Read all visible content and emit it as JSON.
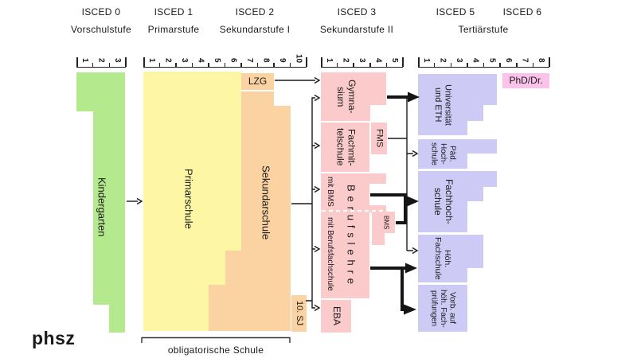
{
  "colors": {
    "green": "#b5e98e",
    "yellow": "#fdf6a4",
    "orange": "#fbd2a2",
    "pink": "#fbcaca",
    "lavender": "#cdcbf6",
    "magenta": "#fbc3e9",
    "ink": "#1a1a1a"
  },
  "header": {
    "isced0": "ISCED 0",
    "isced1": "ISCED 1",
    "isced2": "ISCED 2",
    "isced3": "ISCED 3",
    "isced5": "ISCED 5",
    "isced6": "ISCED 6",
    "stufe0": "Vorschulstufe",
    "stufe1": "Primarstufe",
    "stufe2": "Sekundarstufe I",
    "stufe3": "Sekundarstufe II",
    "stufe56": "Tertiärstufe"
  },
  "scales": [
    {
      "id": "s0",
      "numbers": [
        "1",
        "2",
        "3"
      ]
    },
    {
      "id": "s12",
      "numbers": [
        "1",
        "2",
        "3",
        "4",
        "5",
        "6",
        "7",
        "8",
        "9",
        "10"
      ]
    },
    {
      "id": "s3",
      "numbers": [
        "1",
        "2",
        "3",
        "4",
        "5"
      ]
    },
    {
      "id": "s56",
      "numbers": [
        "1",
        "2",
        "3",
        "4",
        "5",
        "6",
        "7",
        "8"
      ]
    }
  ],
  "blocks": {
    "kindergarten": {
      "label": "Kindergarten"
    },
    "primarschule": {
      "label": "Primarschule"
    },
    "sekundarschule": {
      "label": "Sekundarschule"
    },
    "lzg": {
      "label": "LZG"
    },
    "zehn_sj": {
      "label": "10. SJ"
    },
    "gymnasium": {
      "lines": [
        "Gymna-",
        "sium"
      ]
    },
    "fachmittelschule": {
      "lines": [
        "Fachmit-",
        "telschule"
      ]
    },
    "fms": {
      "label": "FMS"
    },
    "berufslehre": {
      "label": "Berufslehre",
      "left_top": "mit BMS",
      "left_bottom": "mit Berufsfachschule"
    },
    "bms": {
      "label": "BMS"
    },
    "eba": {
      "label": "EBA"
    },
    "uni": {
      "lines": [
        "Universität",
        "und ETH"
      ]
    },
    "ph": {
      "lines": [
        "Päd.",
        "Hoch-",
        "schule"
      ]
    },
    "fh": {
      "lines": [
        "Fachhoch-",
        "schule"
      ]
    },
    "hf": {
      "lines": [
        "Höh.",
        "Fachschule"
      ]
    },
    "vorb": {
      "lines": [
        "Vorb. auf",
        "höh. Fach-",
        "prüfungen"
      ]
    },
    "phd": {
      "label": "PhD/Dr."
    }
  },
  "footer": {
    "logo": "phsz",
    "bracket_label": "obligatorische Schule"
  }
}
